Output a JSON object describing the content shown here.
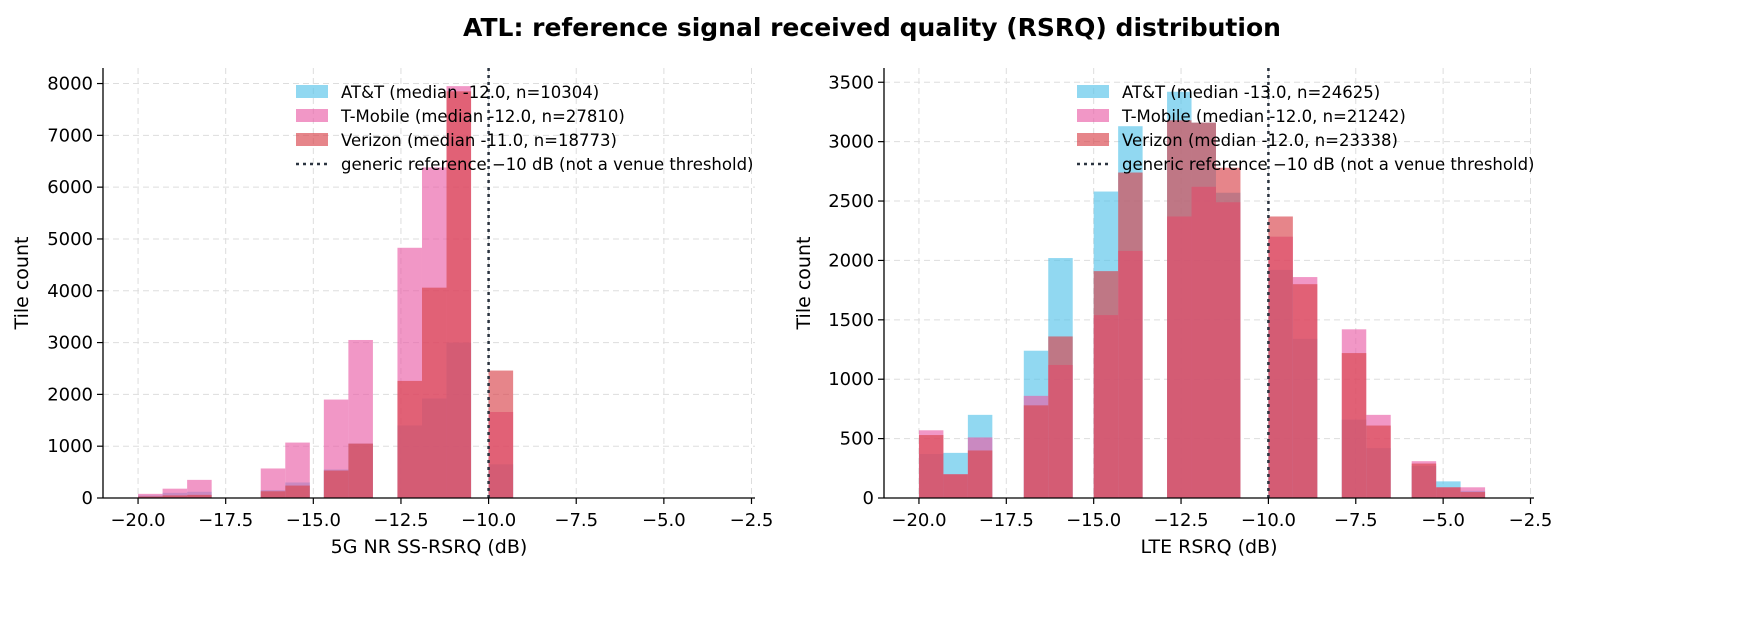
{
  "figure": {
    "title": "ATL: reference signal received quality (RSRQ) distribution"
  },
  "colors": {
    "AT&T": "#56c3ea",
    "T-Mobile": "#ea5fa8",
    "Verizon": "#d9444b",
    "reference_line": "#2b3440",
    "grid": "#dddddd"
  },
  "chart_data": [
    {
      "type": "bar",
      "subtype": "histogram-overlay",
      "xlabel": "5G NR SS-RSRQ (dB)",
      "ylabel": "Tile count",
      "xlim": [
        -21,
        -2.4
      ],
      "ylim": [
        0,
        8300
      ],
      "xticks": [
        -20.0,
        -17.5,
        -15.0,
        -12.5,
        -10.0,
        -7.5,
        -5.0,
        -2.5
      ],
      "xtick_labels": [
        "−20.0",
        "−17.5",
        "−15.0",
        "−12.5",
        "−10.0",
        "−7.5",
        "−5.0",
        "−2.5"
      ],
      "yticks": [
        0,
        1000,
        2000,
        3000,
        4000,
        5000,
        6000,
        7000,
        8000
      ],
      "ytick_labels": [
        "0",
        "1000",
        "2000",
        "3000",
        "4000",
        "5000",
        "6000",
        "7000",
        "8000"
      ],
      "grid": true,
      "legend_position": "top-center",
      "bin_width": 0.7,
      "reference_line": {
        "x": -10,
        "label": "generic reference −10 dB (not a venue threshold)"
      },
      "series": [
        {
          "name": "AT&T",
          "legend": "AT&T (median -12.0, n=10304)",
          "x": [
            -20.0,
            -19.3,
            -18.6,
            -16.5,
            -15.8,
            -14.7,
            -14.0,
            -12.6,
            -11.9,
            -11.2,
            -10.0
          ],
          "values": [
            50,
            100,
            120,
            150,
            300,
            550,
            1050,
            1400,
            1920,
            3000,
            650
          ]
        },
        {
          "name": "T-Mobile",
          "legend": "T-Mobile (median -12.0, n=27810)",
          "x": [
            -20.0,
            -19.3,
            -18.6,
            -16.5,
            -15.8,
            -14.7,
            -14.0,
            -12.6,
            -11.9,
            -11.2,
            -10.0
          ],
          "values": [
            80,
            180,
            350,
            570,
            1070,
            1900,
            3050,
            4830,
            6380,
            7950,
            1660
          ]
        },
        {
          "name": "Verizon",
          "legend": "Verizon (median -11.0, n=18773)",
          "x": [
            -20.0,
            -19.3,
            -18.6,
            -16.5,
            -15.8,
            -14.7,
            -14.0,
            -12.6,
            -11.9,
            -11.2,
            -10.0
          ],
          "values": [
            30,
            50,
            60,
            130,
            240,
            530,
            1050,
            2260,
            4060,
            7850,
            2460
          ]
        }
      ]
    },
    {
      "type": "bar",
      "subtype": "histogram-overlay",
      "xlabel": "LTE RSRQ (dB)",
      "ylabel": "Tile count",
      "xlim": [
        -21,
        -2.4
      ],
      "ylim": [
        0,
        3620
      ],
      "xticks": [
        -20.0,
        -17.5,
        -15.0,
        -12.5,
        -10.0,
        -7.5,
        -5.0,
        -2.5
      ],
      "xtick_labels": [
        "−20.0",
        "−17.5",
        "−15.0",
        "−12.5",
        "−10.0",
        "−7.5",
        "−5.0",
        "−2.5"
      ],
      "yticks": [
        0,
        500,
        1000,
        1500,
        2000,
        2500,
        3000,
        3500
      ],
      "ytick_labels": [
        "0",
        "500",
        "1000",
        "1500",
        "2000",
        "2500",
        "3000",
        "3500"
      ],
      "grid": true,
      "legend_position": "top-right",
      "bin_width": 0.7,
      "reference_line": {
        "x": -10,
        "label": "generic reference −10 dB (not a venue threshold)"
      },
      "series": [
        {
          "name": "AT&T",
          "legend": "AT&T (median -13.0, n=24625)",
          "x": [
            -20.0,
            -19.3,
            -18.6,
            -17.0,
            -16.3,
            -15.0,
            -14.3,
            -12.9,
            -12.2,
            -11.5,
            -10.0,
            -9.3,
            -7.9,
            -7.2,
            -5.9,
            -5.2,
            -4.5
          ],
          "values": [
            370,
            380,
            700,
            1240,
            2020,
            2580,
            3130,
            3420,
            3160,
            2570,
            1920,
            1340,
            660,
            420,
            270,
            140,
            60
          ]
        },
        {
          "name": "T-Mobile",
          "legend": "T-Mobile (median -12.0, n=21242)",
          "x": [
            -20.0,
            -19.3,
            -18.6,
            -17.0,
            -16.3,
            -15.0,
            -14.3,
            -12.9,
            -12.2,
            -11.5,
            -10.0,
            -9.3,
            -7.9,
            -7.2,
            -5.9,
            -5.2,
            -4.5
          ],
          "values": [
            570,
            200,
            510,
            860,
            1120,
            1540,
            2080,
            2370,
            2620,
            2490,
            2200,
            1860,
            1420,
            700,
            310,
            90,
            90
          ]
        },
        {
          "name": "Verizon",
          "legend": "Verizon (median -12.0, n=23338)",
          "x": [
            -20.0,
            -19.3,
            -18.6,
            -17.0,
            -16.3,
            -15.0,
            -14.3,
            -12.9,
            -12.2,
            -11.5,
            -10.0,
            -9.3,
            -7.9,
            -7.2,
            -5.9,
            -5.2,
            -4.5
          ],
          "values": [
            530,
            200,
            400,
            780,
            1360,
            1910,
            2740,
            3180,
            3160,
            2780,
            2370,
            1800,
            1220,
            610,
            290,
            90,
            50
          ]
        }
      ]
    }
  ]
}
